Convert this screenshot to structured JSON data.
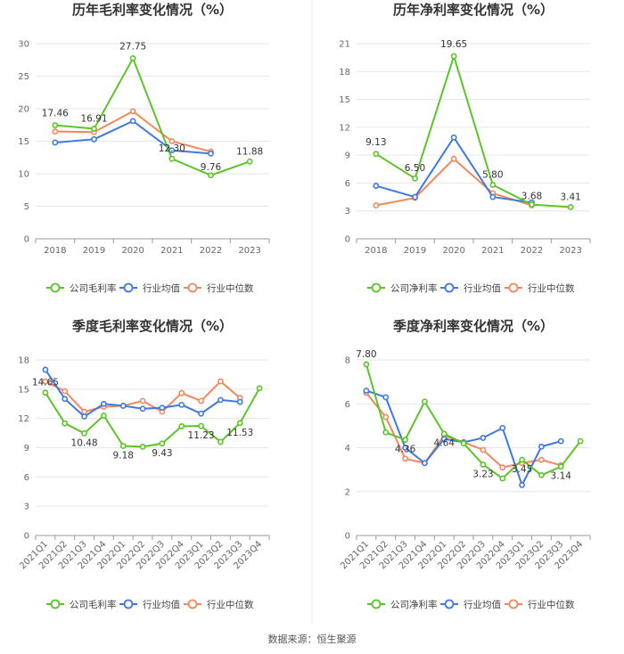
{
  "source": "数据来源：恒生聚源",
  "colors": {
    "company": "#5bc428",
    "avg": "#3f78e0",
    "median": "#f2875c"
  },
  "chart_data": [
    {
      "type": "line",
      "title": "历年毛利率变化情况（%）",
      "categories": [
        "2018",
        "2019",
        "2020",
        "2021",
        "2022",
        "2023"
      ],
      "ylim": [
        0,
        30
      ],
      "yticks": [
        0,
        5,
        10,
        15,
        20,
        25,
        30
      ],
      "grid": true,
      "legend": "bottom",
      "series": [
        {
          "name": "公司毛利率",
          "role": "company",
          "values": [
            17.46,
            16.91,
            27.75,
            12.3,
            9.76,
            11.88
          ]
        },
        {
          "name": "行业均值",
          "role": "avg",
          "values": [
            14.8,
            15.3,
            18.1,
            13.6,
            13.1,
            null
          ]
        },
        {
          "name": "行业中位数",
          "role": "median",
          "values": [
            16.5,
            16.4,
            19.6,
            15.0,
            13.4,
            null
          ]
        }
      ],
      "labels": [
        {
          "text": "17.46",
          "i": 0,
          "v": 17.46
        },
        {
          "text": "16.91",
          "i": 1,
          "v": 16.91
        },
        {
          "text": "27.75",
          "i": 2,
          "v": 27.75
        },
        {
          "text": "12.30",
          "i": 3,
          "v": 12.3
        },
        {
          "text": "9.76",
          "i": 4,
          "v": 9.76
        },
        {
          "text": "11.88",
          "i": 5,
          "v": 11.88
        }
      ]
    },
    {
      "type": "line",
      "title": "历年净利率变化情况（%）",
      "categories": [
        "2018",
        "2019",
        "2020",
        "2021",
        "2022",
        "2023"
      ],
      "ylim": [
        0,
        21
      ],
      "yticks": [
        0,
        3,
        6,
        9,
        12,
        15,
        18,
        21
      ],
      "grid": true,
      "legend": "bottom",
      "series": [
        {
          "name": "公司净利率",
          "role": "company",
          "values": [
            9.13,
            6.5,
            19.65,
            5.8,
            3.68,
            3.41
          ]
        },
        {
          "name": "行业均值",
          "role": "avg",
          "values": [
            5.7,
            4.5,
            10.9,
            4.5,
            3.9,
            null
          ]
        },
        {
          "name": "行业中位数",
          "role": "median",
          "values": [
            3.6,
            4.4,
            8.6,
            4.9,
            3.6,
            null
          ]
        }
      ],
      "labels": [
        {
          "text": "9.13",
          "i": 0,
          "v": 9.13
        },
        {
          "text": "6.50",
          "i": 1,
          "v": 6.5
        },
        {
          "text": "19.65",
          "i": 2,
          "v": 19.65
        },
        {
          "text": "5.80",
          "i": 3,
          "v": 5.8
        },
        {
          "text": "3.68",
          "i": 4,
          "v": 3.68
        },
        {
          "text": "3.41",
          "i": 5,
          "v": 3.41
        }
      ]
    },
    {
      "type": "line",
      "title": "季度毛利率变化情况（%）",
      "categories": [
        "2021Q1",
        "2021Q2",
        "2021Q3",
        "2021Q4",
        "2022Q1",
        "2022Q2",
        "2022Q3",
        "2022Q4",
        "2023Q1",
        "2023Q2",
        "2023Q3",
        "2023Q4"
      ],
      "ylim": [
        0,
        18
      ],
      "yticks": [
        0,
        3,
        6,
        9,
        12,
        15,
        18
      ],
      "grid": true,
      "legend": "bottom",
      "series": [
        {
          "name": "公司毛利率",
          "role": "company",
          "values": [
            14.65,
            11.5,
            10.48,
            12.3,
            9.18,
            9.1,
            9.43,
            11.2,
            11.23,
            9.6,
            11.53,
            15.1
          ]
        },
        {
          "name": "行业均值",
          "role": "avg",
          "values": [
            17.0,
            14.0,
            12.2,
            13.5,
            13.3,
            13.0,
            13.1,
            13.4,
            12.5,
            13.9,
            13.7,
            null
          ]
        },
        {
          "name": "行业中位数",
          "role": "median",
          "values": [
            15.8,
            14.8,
            12.7,
            13.2,
            13.3,
            13.8,
            12.7,
            14.6,
            13.8,
            15.8,
            14.1,
            null
          ]
        }
      ],
      "labels": [
        {
          "text": "14.65",
          "i": 0,
          "v": 14.65
        },
        {
          "text": "10.48",
          "i": 2,
          "v": 10.48
        },
        {
          "text": "9.18",
          "i": 4,
          "v": 9.18
        },
        {
          "text": "9.43",
          "i": 6,
          "v": 9.43
        },
        {
          "text": "11.23",
          "i": 8,
          "v": 11.23
        },
        {
          "text": "11.53",
          "i": 10,
          "v": 11.53
        }
      ]
    },
    {
      "type": "line",
      "title": "季度净利率变化情况（%）",
      "categories": [
        "2021Q1",
        "2021Q2",
        "2021Q3",
        "2021Q4",
        "2022Q1",
        "2022Q2",
        "2022Q3",
        "2022Q4",
        "2023Q1",
        "2023Q2",
        "2023Q3",
        "2023Q4"
      ],
      "ylim": [
        0,
        8
      ],
      "yticks": [
        0,
        2,
        4,
        6,
        8
      ],
      "grid": true,
      "legend": "bottom",
      "series": [
        {
          "name": "公司净利率",
          "role": "company",
          "values": [
            7.8,
            4.7,
            4.36,
            6.1,
            4.64,
            4.2,
            3.23,
            2.6,
            3.45,
            2.75,
            3.14,
            4.3
          ]
        },
        {
          "name": "行业均值",
          "role": "avg",
          "values": [
            6.6,
            6.3,
            4.0,
            3.3,
            4.4,
            4.25,
            4.45,
            4.9,
            2.3,
            4.05,
            4.3,
            null
          ]
        },
        {
          "name": "行业中位数",
          "role": "median",
          "values": [
            6.5,
            5.4,
            3.5,
            3.3,
            4.55,
            4.25,
            3.9,
            3.1,
            3.3,
            3.45,
            3.2,
            null
          ]
        }
      ],
      "labels": [
        {
          "text": "7.80",
          "i": 0,
          "v": 7.8
        },
        {
          "text": "4.36",
          "i": 2,
          "v": 4.36
        },
        {
          "text": "4.64",
          "i": 4,
          "v": 4.64
        },
        {
          "text": "3.23",
          "i": 6,
          "v": 3.23
        },
        {
          "text": "3.45",
          "i": 8,
          "v": 3.45
        },
        {
          "text": "3.14",
          "i": 10,
          "v": 3.14
        }
      ]
    }
  ]
}
